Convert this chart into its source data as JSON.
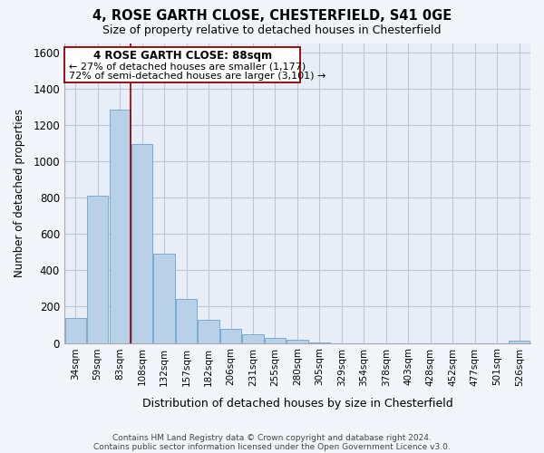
{
  "title": "4, ROSE GARTH CLOSE, CHESTERFIELD, S41 0GE",
  "subtitle": "Size of property relative to detached houses in Chesterfield",
  "xlabel": "Distribution of detached houses by size in Chesterfield",
  "ylabel": "Number of detached properties",
  "footer_line1": "Contains HM Land Registry data © Crown copyright and database right 2024.",
  "footer_line2": "Contains public sector information licensed under the Open Government Licence v3.0.",
  "bar_labels": [
    "34sqm",
    "59sqm",
    "83sqm",
    "108sqm",
    "132sqm",
    "157sqm",
    "182sqm",
    "206sqm",
    "231sqm",
    "255sqm",
    "280sqm",
    "305sqm",
    "329sqm",
    "354sqm",
    "378sqm",
    "403sqm",
    "428sqm",
    "452sqm",
    "477sqm",
    "501sqm",
    "526sqm"
  ],
  "bar_values": [
    140,
    810,
    1285,
    1095,
    490,
    240,
    128,
    78,
    48,
    28,
    18,
    5,
    0,
    0,
    0,
    0,
    0,
    0,
    0,
    0,
    12
  ],
  "bar_color": "#b8d0e8",
  "bar_edge_color": "#7aaad0",
  "vline_x": 2.5,
  "vline_color": "#8b0000",
  "ylim": [
    0,
    1650
  ],
  "yticks": [
    0,
    200,
    400,
    600,
    800,
    1000,
    1200,
    1400,
    1600
  ],
  "annotation_title": "4 ROSE GARTH CLOSE: 88sqm",
  "annotation_line1": "← 27% of detached houses are smaller (1,177)",
  "annotation_line2": "72% of semi-detached houses are larger (3,101) →",
  "background_color": "#f2f5fa",
  "plot_bg_color": "#e8eef7",
  "grid_color": "#c0c8d8"
}
